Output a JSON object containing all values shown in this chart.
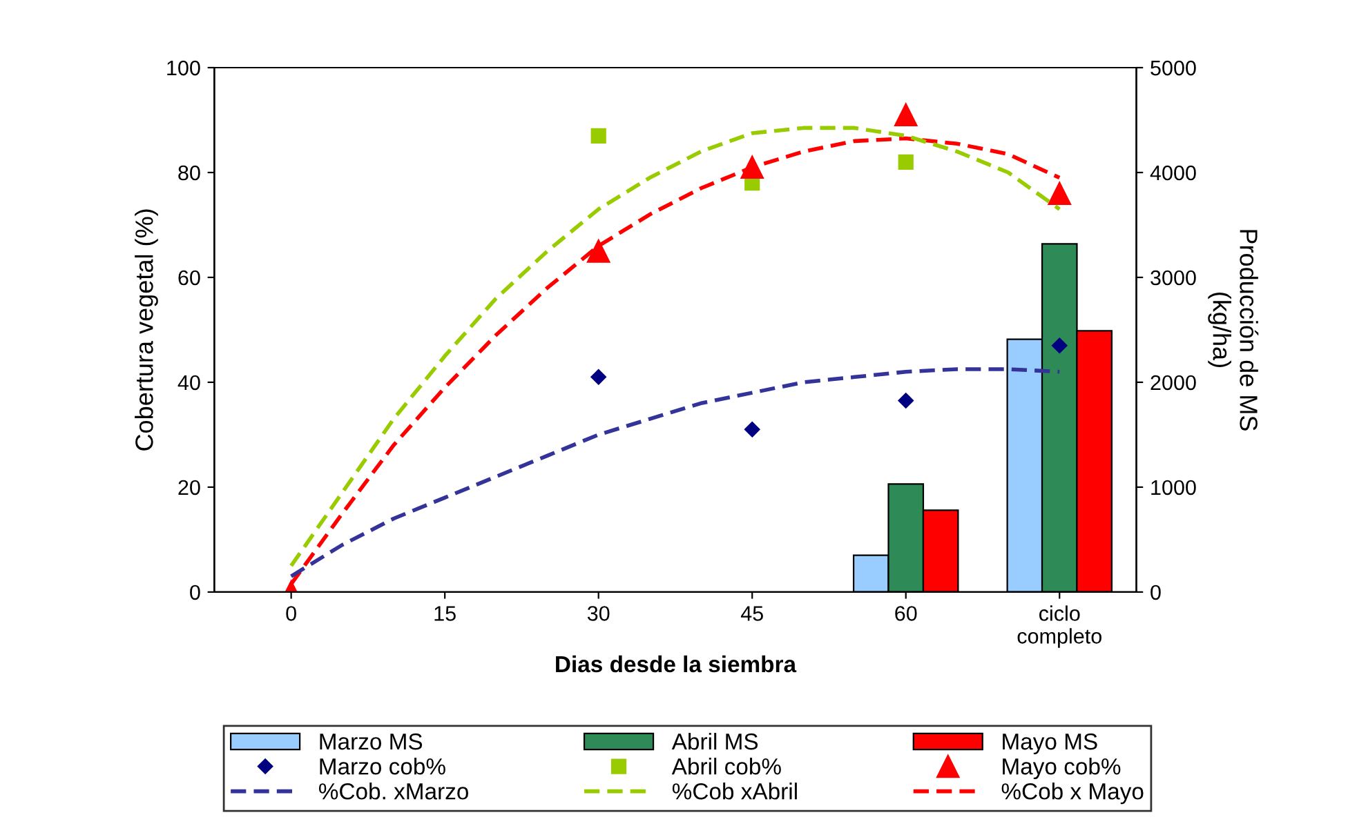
{
  "chart_data": {
    "type": "bar",
    "xlabel": "Dias desde la siembra",
    "ylabel": "Cobertura vegetal (%)",
    "y2label": "Producción de MS\n(kg/ha)",
    "xlim": [
      -7.5,
      82.5
    ],
    "xticks": [
      0,
      15,
      30,
      45,
      60,
      {
        "value": 75,
        "label": "ciclo\ncompleto"
      }
    ],
    "ylim": [
      0,
      100
    ],
    "yticks": [
      0,
      20,
      40,
      60,
      80,
      100
    ],
    "y2lim": [
      0,
      5000
    ],
    "y2ticks": [
      0,
      1000,
      2000,
      3000,
      4000,
      5000
    ],
    "grid": false,
    "legend": "bottom",
    "series": [
      {
        "name": "Marzo MS",
        "color": "#99ccff",
        "axis": "y2",
        "x": [
          60,
          75
        ],
        "values": [
          350,
          2410
        ]
      },
      {
        "name": "Abril MS",
        "color": "#2e8b57",
        "axis": "y2",
        "x": [
          60,
          75
        ],
        "values": [
          1030,
          3320
        ]
      },
      {
        "name": "Mayo MS",
        "color": "#ff0000",
        "axis": "y2",
        "x": [
          60,
          75
        ],
        "values": [
          780,
          2490
        ]
      },
      {
        "type": "scatter",
        "name": "Marzo cob%",
        "color": "#000080",
        "marker": "diamond",
        "x": [
          30,
          45,
          60,
          75
        ],
        "values": [
          41,
          31,
          36.5,
          47
        ]
      },
      {
        "type": "scatter",
        "name": "Abril cob%",
        "color": "#99cc00",
        "marker": "square",
        "x": [
          30,
          45,
          60
        ],
        "values": [
          87,
          78,
          82
        ]
      },
      {
        "type": "scatter",
        "name": "Mayo cob%",
        "color": "#ff0000",
        "marker": "triangle",
        "x": [
          0,
          30,
          45,
          60,
          75
        ],
        "values": [
          0,
          65,
          81,
          91,
          76
        ]
      },
      {
        "type": "line",
        "name": "%Cob. xMarzo",
        "color": "#333399",
        "line_style": "dashed",
        "x": [
          0,
          5,
          10,
          15,
          20,
          25,
          30,
          35,
          40,
          45,
          50,
          55,
          60,
          65,
          70,
          75
        ],
        "values": [
          3,
          9,
          14,
          18,
          22,
          26,
          30,
          33,
          36,
          38,
          40,
          41,
          42,
          42.5,
          42.5,
          42
        ]
      },
      {
        "type": "line",
        "name": "%Cob xAbril",
        "color": "#99cc00",
        "line_style": "dashed",
        "x": [
          0,
          5,
          10,
          15,
          20,
          25,
          30,
          35,
          40,
          45,
          50,
          55,
          60,
          65,
          70,
          75
        ],
        "values": [
          5,
          19,
          33,
          45,
          56,
          65,
          73,
          79,
          84,
          87.5,
          88.5,
          88.5,
          87,
          84,
          80,
          73
        ]
      },
      {
        "type": "line",
        "name": "%Cob x Mayo",
        "color": "#ff0000",
        "line_style": "dashed",
        "x": [
          0,
          5,
          10,
          15,
          20,
          25,
          30,
          35,
          40,
          45,
          50,
          55,
          60,
          65,
          70,
          75
        ],
        "values": [
          1.5,
          15,
          28,
          39,
          49,
          58,
          66,
          72,
          77,
          81,
          84,
          86,
          86.5,
          85.5,
          83.5,
          79
        ]
      }
    ]
  }
}
